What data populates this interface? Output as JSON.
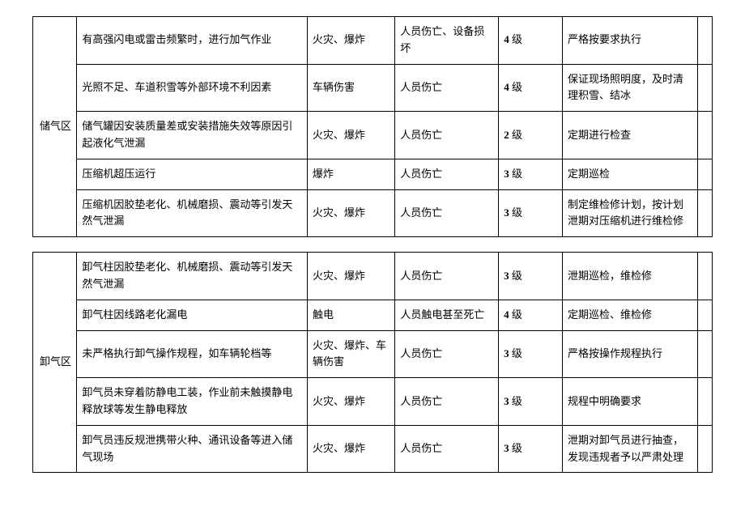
{
  "tables": [
    {
      "area": "储气区",
      "areaRowSpan": 5,
      "areaStartRow": 0,
      "rows": [
        {
          "desc": "有高强闪电或雷击频繁时，进行加气作业",
          "risk": "火灾、爆炸",
          "consequence": "人员伤亡、设备损坏",
          "levelNum": "4",
          "levelSuffix": "级",
          "measure": "严格按要求执行",
          "showArea": false
        },
        {
          "desc": "光照不足、车道积雪等外部环境不利因素",
          "risk": "车辆伤害",
          "consequence": "人员伤亡",
          "levelNum": "4",
          "levelSuffix": "级",
          "measure": "保证现场照明度，及时清理积雪、结冰",
          "showArea": false
        },
        {
          "desc": "储气罐因安装质量差或安装措施失效等原因引起液化气泄漏",
          "risk": "火灾、爆炸",
          "consequence": "人员伤亡",
          "levelNum": "2",
          "levelSuffix": "级",
          "measure": "定期进行检查",
          "showArea": true
        },
        {
          "desc": "压缩机超压运行",
          "risk": "爆炸",
          "consequence": "人员伤亡",
          "levelNum": "3",
          "levelSuffix": "级",
          "measure": "定期巡检",
          "showArea": false
        },
        {
          "desc": "压缩机因胶垫老化、机械磨损、震动等引发天然气泄漏",
          "risk": "火灾、爆炸",
          "consequence": "人员伤亡",
          "levelNum": "3",
          "levelSuffix": "级",
          "measure": "制定维检修计划，按计划泄期对压缩机进行维检修",
          "showArea": false
        }
      ]
    },
    {
      "area": "卸气区",
      "areaRowSpan": 5,
      "areaStartRow": 0,
      "rows": [
        {
          "desc": "卸气柱因胶垫老化、机械磨损、震动等引发天然气泄漏",
          "risk": "火灾、爆炸",
          "consequence": "人员伤亡",
          "levelNum": "3",
          "levelSuffix": "级",
          "measure": "泄期巡检，维检修",
          "showArea": true
        },
        {
          "desc": "卸气柱因线路老化漏电",
          "risk": "触电",
          "consequence": "人员触电甚至死亡",
          "levelNum": "4",
          "levelSuffix": "级",
          "measure": "定期巡检、维检修",
          "showArea": false
        },
        {
          "desc": "未严格执行卸气操作规程，如车辆轮档等",
          "risk": "火灾、爆炸、车辆伤害",
          "consequence": "人员伤亡",
          "levelNum": "3",
          "levelSuffix": "级",
          "measure": "严格按操作规程执行",
          "showArea": false
        },
        {
          "desc": "卸气员未穿着防静电工装，作业前未触摸静电释放球等发生静电释放",
          "risk": "火灾、爆炸",
          "consequence": "人员伤亡",
          "levelNum": "3",
          "levelSuffix": "级",
          "measure": "规程中明确要求",
          "showArea": false
        },
        {
          "desc": "卸气员违反规泄携带火种、通讯设备等进入储气现场",
          "risk": "火灾、爆炸",
          "consequence": "人员伤亡",
          "levelNum": "3",
          "levelSuffix": "级",
          "measure": "泄期对卸气员进行抽查，发现违规者予以严肃处理",
          "showArea": false
        }
      ]
    }
  ]
}
